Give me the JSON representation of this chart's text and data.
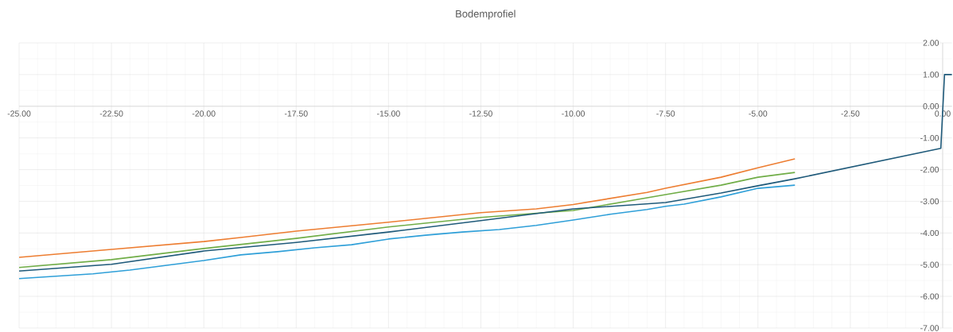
{
  "chart_data": {
    "type": "line",
    "title": "Bodemprofiel",
    "xlim": [
      -25,
      0.25
    ],
    "ylim": [
      -7,
      2
    ],
    "xticks": [
      {
        "value": -25,
        "label": "-25.00"
      },
      {
        "value": -22.5,
        "label": "-22.50"
      },
      {
        "value": -20,
        "label": "-20.00"
      },
      {
        "value": -17.5,
        "label": "-17.50"
      },
      {
        "value": -15,
        "label": "-15.00"
      },
      {
        "value": -12.5,
        "label": "-12.50"
      },
      {
        "value": -10,
        "label": "-10.00"
      },
      {
        "value": -7.5,
        "label": "-7.50"
      },
      {
        "value": -5,
        "label": "-5.00"
      },
      {
        "value": -2.5,
        "label": "-2.50"
      },
      {
        "value": 0,
        "label": "0.00"
      }
    ],
    "yticks": [
      {
        "value": -7,
        "label": "-7.00"
      },
      {
        "value": -6,
        "label": "-6.00"
      },
      {
        "value": -5,
        "label": "-5.00"
      },
      {
        "value": -4,
        "label": "-4.00"
      },
      {
        "value": -3,
        "label": "-3.00"
      },
      {
        "value": -2,
        "label": "-2.00"
      },
      {
        "value": -1,
        "label": "-1.00"
      },
      {
        "value": 0,
        "label": "0.00"
      },
      {
        "value": 1,
        "label": "1.00"
      },
      {
        "value": 2,
        "label": "2.00"
      }
    ],
    "grid": true,
    "series": [
      {
        "color": "#ed7d31",
        "x": [
          -25,
          -22.5,
          -20,
          -19,
          -17.5,
          -15,
          -12.5,
          -11,
          -10,
          -8,
          -7.5,
          -6,
          -5,
          -4
        ],
        "values": [
          -4.77,
          -4.52,
          -4.27,
          -4.14,
          -3.94,
          -3.66,
          -3.36,
          -3.24,
          -3.1,
          -2.72,
          -2.59,
          -2.24,
          -1.94,
          -1.66
        ]
      },
      {
        "color": "#70ad47",
        "x": [
          -25,
          -22.5,
          -20,
          -17.5,
          -15,
          -12.5,
          -10,
          -7.5,
          -6,
          -5,
          -4
        ],
        "values": [
          -5.09,
          -4.84,
          -4.49,
          -4.17,
          -3.81,
          -3.51,
          -3.29,
          -2.79,
          -2.49,
          -2.24,
          -2.09
        ]
      },
      {
        "color": "#2e9fd8",
        "x": [
          -25,
          -23,
          -22,
          -21,
          -20,
          -19,
          -18,
          -17,
          -16,
          -15,
          -14,
          -13,
          -12,
          -11,
          -10,
          -9,
          -8,
          -7.5,
          -7,
          -6,
          -5,
          -4
        ],
        "values": [
          -5.44,
          -5.29,
          -5.17,
          -5.02,
          -4.87,
          -4.69,
          -4.59,
          -4.47,
          -4.37,
          -4.19,
          -4.07,
          -3.97,
          -3.89,
          -3.76,
          -3.59,
          -3.41,
          -3.26,
          -3.16,
          -3.09,
          -2.86,
          -2.59,
          -2.49
        ]
      },
      {
        "color": "#1f5a7a",
        "x": [
          -25,
          -22.5,
          -20,
          -17.5,
          -15,
          -12.5,
          -10,
          -7.5,
          -6,
          -5,
          -4,
          -0.05,
          0.05,
          0.25
        ],
        "values": [
          -5.2,
          -4.99,
          -4.57,
          -4.3,
          -3.97,
          -3.61,
          -3.24,
          -3.04,
          -2.74,
          -2.51,
          -2.29,
          -1.33,
          1,
          1
        ]
      }
    ]
  }
}
